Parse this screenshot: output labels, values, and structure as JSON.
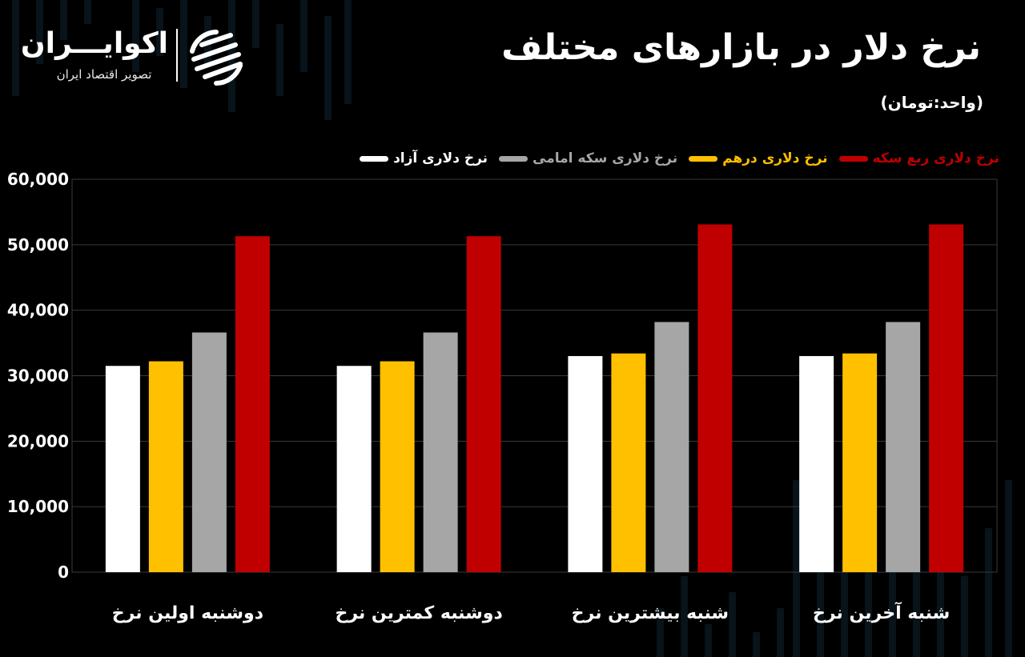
{
  "header": {
    "title": "نرخ دلار در بازارهای  مختلف",
    "unit": "(واحد:تومان)"
  },
  "logo": {
    "name": "اکوایـــران",
    "subtitle": "تصویر اقتصاد ایران",
    "icon": "ecoiran-logo-icon"
  },
  "colors": {
    "background": "#000000",
    "grid": "#3a3a3a",
    "series": [
      "#ffffff",
      "#ffc000",
      "#a6a6a6",
      "#c00000"
    ]
  },
  "chart_data": {
    "type": "bar",
    "title": "نرخ دلار در بازارهای  مختلف",
    "subtitle": "(واحد:تومان)",
    "categories": [
      "دوشنبه اولین نرخ",
      "دوشنبه کمترین نرخ",
      "شنبه بیشترین نرخ",
      "شنبه آخرین نرخ"
    ],
    "series": [
      {
        "name": "نرخ دلاری آزاد",
        "color": "#ffffff",
        "values": [
          31500,
          31500,
          33000,
          33000
        ]
      },
      {
        "name": "نرخ دلاری درهم",
        "color": "#ffc000",
        "values": [
          32200,
          32200,
          33400,
          33400
        ]
      },
      {
        "name": "نرخ دلاری سکه امامی",
        "color": "#a6a6a6",
        "values": [
          36600,
          36600,
          38200,
          38200
        ]
      },
      {
        "name": "نرخ دلاری ربع سکه",
        "color": "#c00000",
        "values": [
          51300,
          51300,
          53100,
          53100
        ]
      }
    ],
    "ylim": [
      0,
      60000
    ],
    "yticks": [
      0,
      10000,
      20000,
      30000,
      40000,
      50000,
      60000
    ],
    "ytick_labels": [
      "0",
      "10,000",
      "20,000",
      "30,000",
      "40,000",
      "50,000",
      "60,000"
    ],
    "grid": true,
    "legend_position": "top-right"
  }
}
